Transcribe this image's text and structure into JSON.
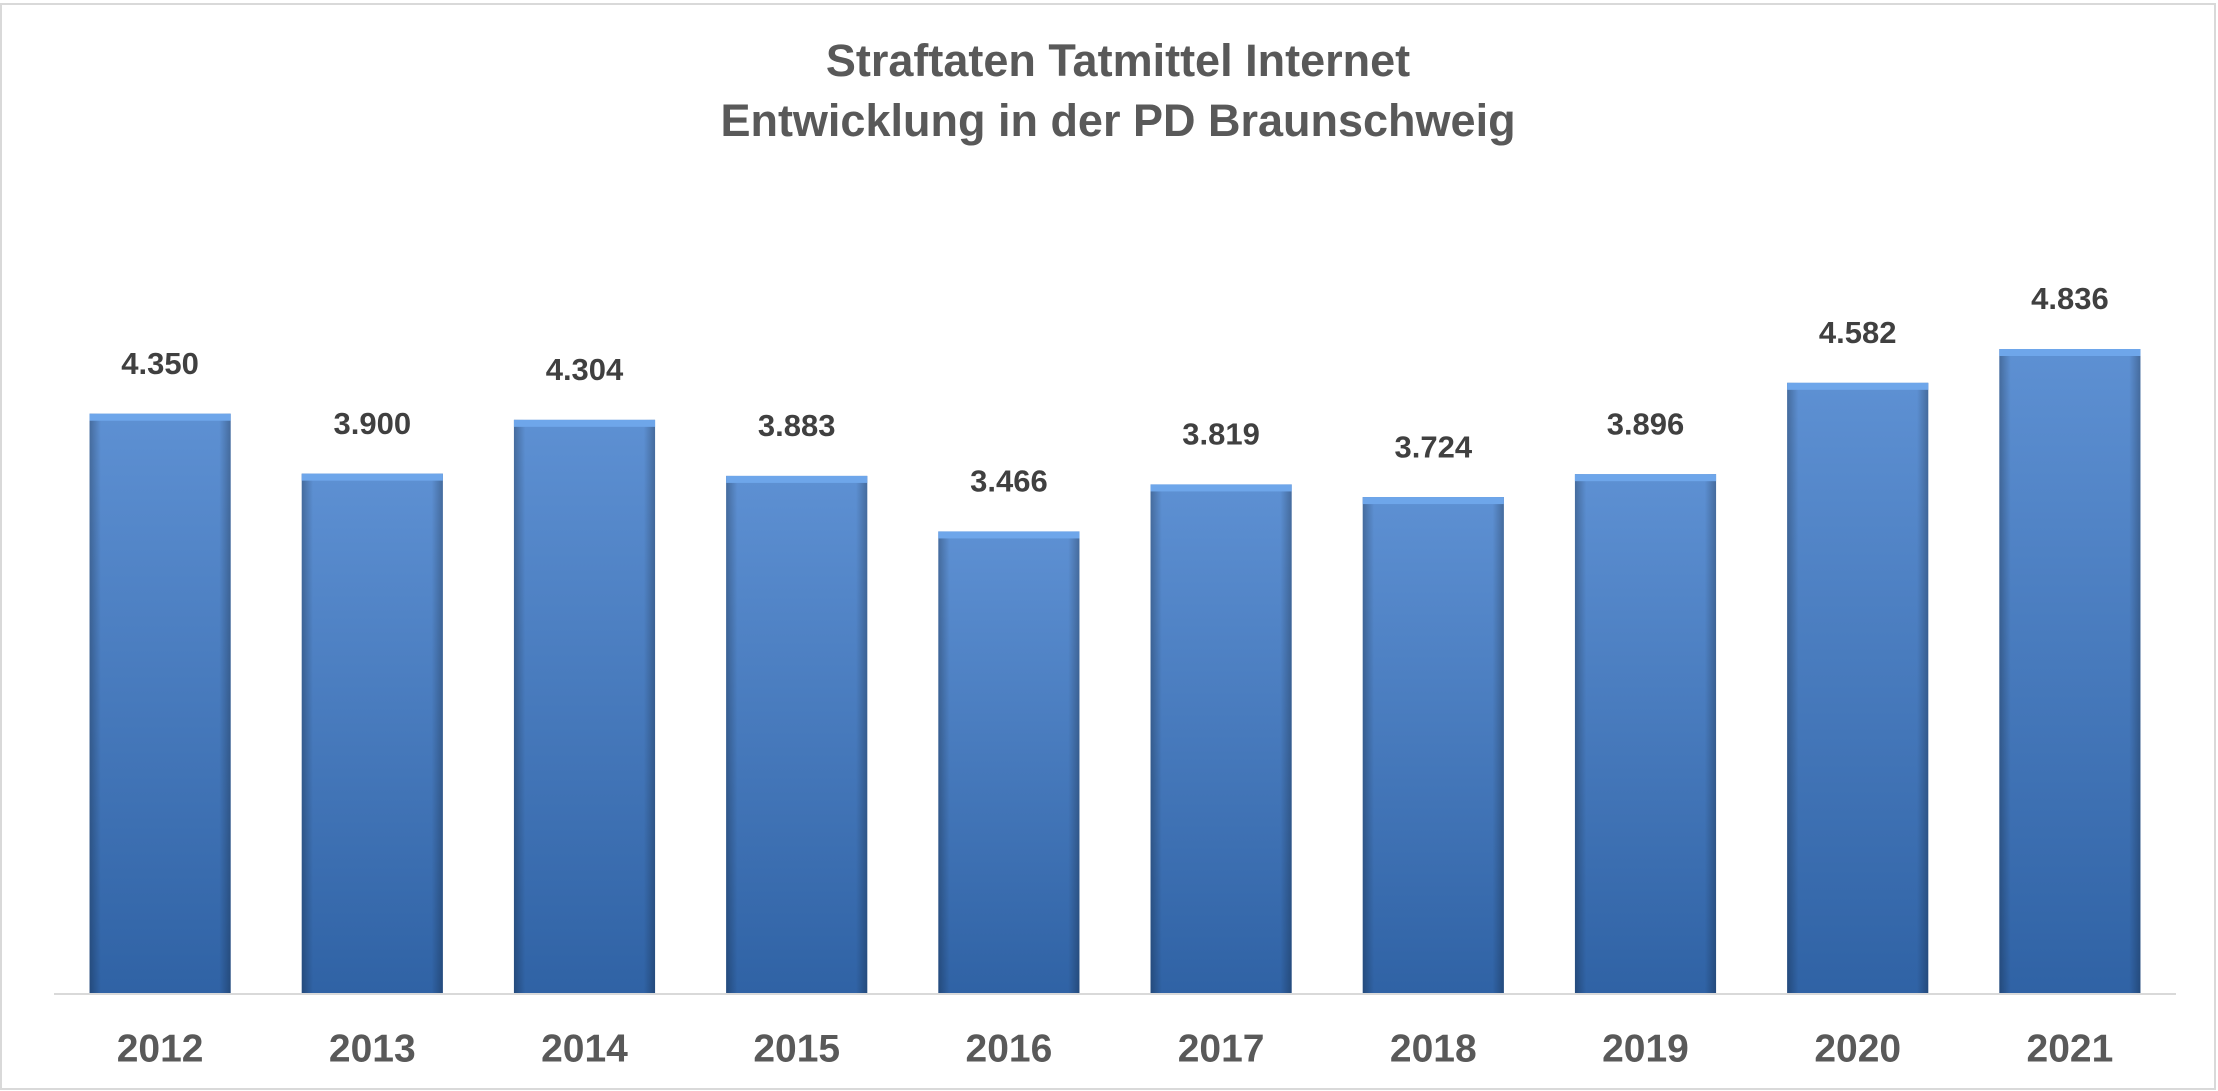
{
  "chart_data": {
    "type": "bar",
    "title": "Straftaten Tatmittel Internet",
    "subtitle": "Entwicklung in der PD Braunschweig",
    "categories": [
      "2012",
      "2013",
      "2014",
      "2015",
      "2016",
      "2017",
      "2018",
      "2019",
      "2020",
      "2021"
    ],
    "values": [
      4350,
      3900,
      4304,
      3883,
      3466,
      3819,
      3724,
      3896,
      4582,
      4836
    ],
    "value_labels": [
      "4.350",
      "3.900",
      "4.304",
      "3.883",
      "3.466",
      "3.819",
      "3.724",
      "3.896",
      "4.582",
      "4.836"
    ],
    "color": "#3a78c9",
    "ylim": [
      0,
      6000
    ]
  }
}
